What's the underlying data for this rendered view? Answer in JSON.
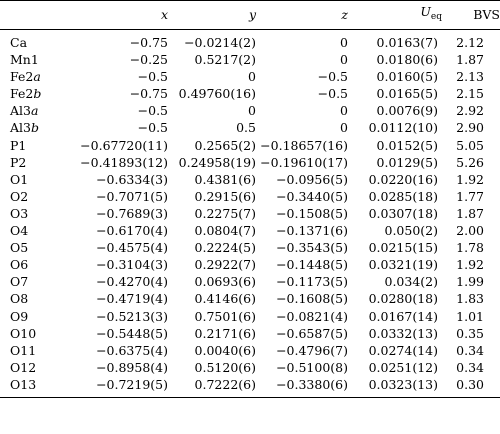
{
  "header": {
    "atom": "",
    "x": "x",
    "y": "y",
    "z": "z",
    "u_main": "U",
    "u_sub": "eq",
    "bvs": "BVS"
  },
  "rows": [
    {
      "atom": "Ca",
      "suffix": "",
      "x": "−0.75",
      "y": "−0.0214(2)",
      "z": "0",
      "u": "0.0163(7)",
      "bvs": "2.12"
    },
    {
      "atom": "Mn1",
      "suffix": "",
      "x": "−0.25",
      "y": "0.5217(2)",
      "z": "0",
      "u": "0.0180(6)",
      "bvs": "1.87"
    },
    {
      "atom": "Fe2",
      "suffix": "a",
      "x": "−0.5",
      "y": "0",
      "z": "−0.5",
      "u": "0.0160(5)",
      "bvs": "2.13"
    },
    {
      "atom": "Fe2",
      "suffix": "b",
      "x": "−0.75",
      "y": "0.49760(16)",
      "z": "−0.5",
      "u": "0.0165(5)",
      "bvs": "2.15"
    },
    {
      "atom": "Al3",
      "suffix": "a",
      "x": "−0.5",
      "y": "0",
      "z": "0",
      "u": "0.0076(9)",
      "bvs": "2.92"
    },
    {
      "atom": "Al3",
      "suffix": "b",
      "x": "−0.5",
      "y": "0.5",
      "z": "0",
      "u": "0.0112(10)",
      "bvs": "2.90"
    },
    {
      "atom": "P1",
      "suffix": "",
      "x": "−0.67720(11)",
      "y": "0.2565(2)",
      "z": "−0.18657(16)",
      "u": "0.0152(5)",
      "bvs": "5.05"
    },
    {
      "atom": "P2",
      "suffix": "",
      "x": "−0.41893(12)",
      "y": "0.24958(19)",
      "z": "−0.19610(17)",
      "u": "0.0129(5)",
      "bvs": "5.26"
    },
    {
      "atom": "O1",
      "suffix": "",
      "x": "−0.6334(3)",
      "y": "0.4381(6)",
      "z": "−0.0956(5)",
      "u": "0.0220(16)",
      "bvs": "1.92"
    },
    {
      "atom": "O2",
      "suffix": "",
      "x": "−0.7071(5)",
      "y": "0.2915(6)",
      "z": "−0.3440(5)",
      "u": "0.0285(18)",
      "bvs": "1.77"
    },
    {
      "atom": "O3",
      "suffix": "",
      "x": "−0.7689(3)",
      "y": "0.2275(7)",
      "z": "−0.1508(5)",
      "u": "0.0307(18)",
      "bvs": "1.87"
    },
    {
      "atom": "O4",
      "suffix": "",
      "x": "−0.6170(4)",
      "y": "0.0804(7)",
      "z": "−0.1371(6)",
      "u": "0.050(2)",
      "bvs": "2.00"
    },
    {
      "atom": "O5",
      "suffix": "",
      "x": "−0.4575(4)",
      "y": "0.2224(5)",
      "z": "−0.3543(5)",
      "u": "0.0215(15)",
      "bvs": "1.78"
    },
    {
      "atom": "O6",
      "suffix": "",
      "x": "−0.3104(3)",
      "y": "0.2922(7)",
      "z": "−0.1448(5)",
      "u": "0.0321(19)",
      "bvs": "1.92"
    },
    {
      "atom": "O7",
      "suffix": "",
      "x": "−0.4270(4)",
      "y": "0.0693(6)",
      "z": "−0.1173(5)",
      "u": "0.034(2)",
      "bvs": "1.99"
    },
    {
      "atom": "O8",
      "suffix": "",
      "x": "−0.4719(4)",
      "y": "0.4146(6)",
      "z": "−0.1608(5)",
      "u": "0.0280(18)",
      "bvs": "1.83"
    },
    {
      "atom": "O9",
      "suffix": "",
      "x": "−0.5213(3)",
      "y": "0.7501(6)",
      "z": "−0.0821(4)",
      "u": "0.0167(14)",
      "bvs": "1.01"
    },
    {
      "atom": "O10",
      "suffix": "",
      "x": "−0.5448(5)",
      "y": "0.2171(6)",
      "z": "−0.6587(5)",
      "u": "0.0332(13)",
      "bvs": "0.35"
    },
    {
      "atom": "O11",
      "suffix": "",
      "x": "−0.6375(4)",
      "y": "0.0040(6)",
      "z": "−0.4796(7)",
      "u": "0.0274(14)",
      "bvs": "0.34"
    },
    {
      "atom": "O12",
      "suffix": "",
      "x": "−0.8958(4)",
      "y": "0.5120(6)",
      "z": "−0.5100(8)",
      "u": "0.0251(12)",
      "bvs": "0.34"
    },
    {
      "atom": "O13",
      "suffix": "",
      "x": "−0.7219(5)",
      "y": "0.7222(6)",
      "z": "−0.3380(6)",
      "u": "0.0323(13)",
      "bvs": "0.30"
    }
  ]
}
